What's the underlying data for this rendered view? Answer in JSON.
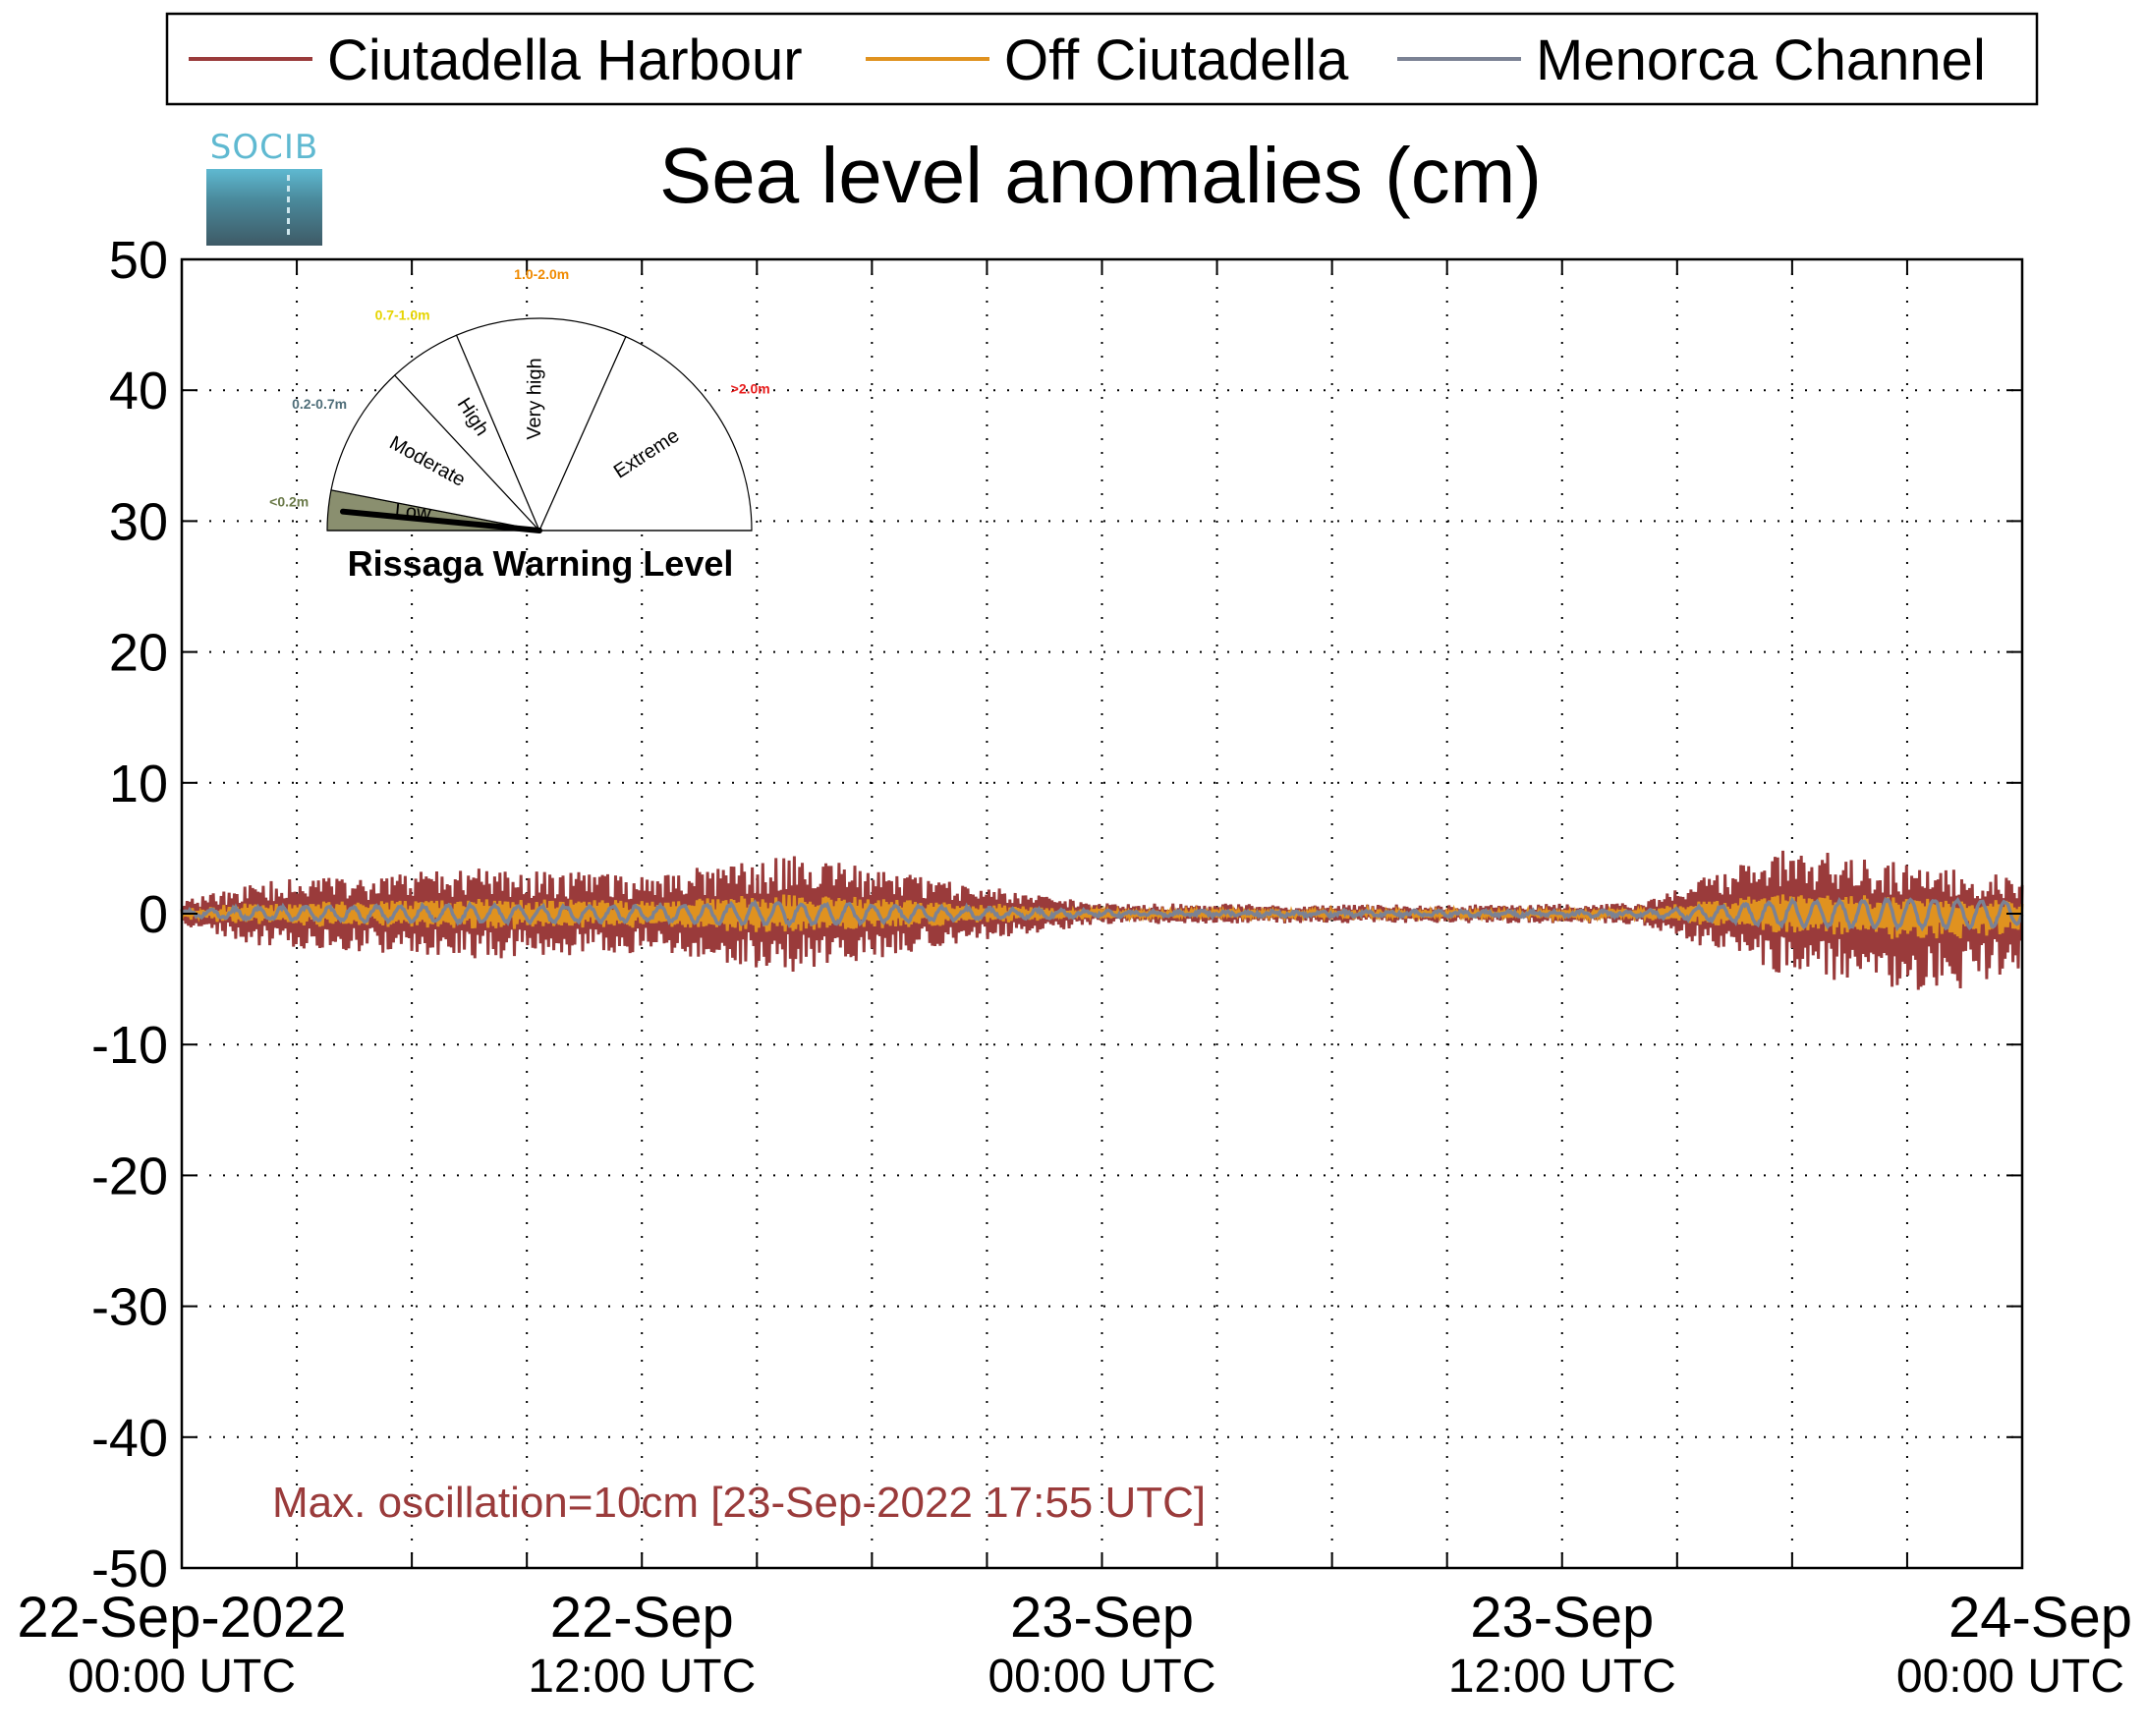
{
  "chart_data": {
    "type": "line",
    "title": "Sea level anomalies (cm)",
    "xlabel": "",
    "ylabel": "",
    "ylim": [
      -50,
      50
    ],
    "yticks": [
      50,
      40,
      30,
      20,
      10,
      0,
      -10,
      -20,
      -30,
      -40,
      -50
    ],
    "yticklabels": [
      "50",
      "40",
      "30",
      "20",
      "10",
      "0",
      "-10",
      "-20",
      "-30",
      "-40",
      "-50"
    ],
    "xlim": [
      "2022-09-22T00:00Z",
      "2022-09-24T00:00Z"
    ],
    "xticks": [
      {
        "t": "2022-09-22T00:00Z",
        "line1": "22-Sep-2022",
        "line2": "00:00 UTC"
      },
      {
        "t": "2022-09-22T12:00Z",
        "line1": "22-Sep",
        "line2": "12:00 UTC"
      },
      {
        "t": "2022-09-23T00:00Z",
        "line1": "23-Sep",
        "line2": "00:00 UTC"
      },
      {
        "t": "2022-09-23T12:00Z",
        "line1": "23-Sep",
        "line2": "12:00 UTC"
      },
      {
        "t": "2022-09-24T00:00Z",
        "line1": "24-Sep",
        "line2": "00:00 UTC"
      }
    ],
    "grid": true,
    "legend_position": "top",
    "series": [
      {
        "name": "Ciutadella Harbour",
        "color": "#9a3b3b",
        "amplitude_envelope": [
          {
            "t": "2022-09-22T00:00Z",
            "max": 1,
            "min": -1
          },
          {
            "t": "2022-09-22T02:00Z",
            "max": 2.5,
            "min": -2.5
          },
          {
            "t": "2022-09-22T08:00Z",
            "max": 3.5,
            "min": -3.5
          },
          {
            "t": "2022-09-22T12:00Z",
            "max": 3,
            "min": -3
          },
          {
            "t": "2022-09-22T16:00Z",
            "max": 4.5,
            "min": -4.5
          },
          {
            "t": "2022-09-22T20:00Z",
            "max": 2.5,
            "min": -2.5
          },
          {
            "t": "2022-09-23T00:00Z",
            "max": 0.8,
            "min": -0.8
          },
          {
            "t": "2022-09-23T08:00Z",
            "max": 0.7,
            "min": -0.7
          },
          {
            "t": "2022-09-23T14:00Z",
            "max": 0.8,
            "min": -0.8
          },
          {
            "t": "2022-09-23T17:55Z",
            "max": 5.3,
            "min": -5
          },
          {
            "t": "2022-09-23T22:00Z",
            "max": 3.5,
            "min": -6
          },
          {
            "t": "2022-09-24T00:00Z",
            "max": 3,
            "min": -4.5
          }
        ]
      },
      {
        "name": "Off Ciutadella",
        "color": "#e0921f",
        "amplitude_cm": 1.2
      },
      {
        "name": "Menorca Channel",
        "color": "#7b8294",
        "amplitude_cm": 0.6
      }
    ],
    "annotation": "Max. oscillation=10cm [23-Sep-2022 17:55 UTC]",
    "annotation_color": "#9a3b3b"
  },
  "logo": {
    "text": "SOCIB"
  },
  "gauge": {
    "title": "Rissaga Warning Level",
    "current_level": "Low",
    "sectors": [
      {
        "label": "Low",
        "range": "<0.2m",
        "range_color": "#6b7a4a",
        "fill": "#8a8f6f",
        "active": true
      },
      {
        "label": "Moderate",
        "range": "0.2-0.7m",
        "range_color": "#4f6e79",
        "fill": "#ffffff",
        "active": false
      },
      {
        "label": "High",
        "range": "0.7-1.0m",
        "range_color": "#e6d400",
        "fill": "#ffffff",
        "active": false
      },
      {
        "label": "Very high",
        "range": "1.0-2.0m",
        "range_color": "#f08a00",
        "fill": "#ffffff",
        "active": false
      },
      {
        "label": "Extreme",
        "range": ">2.0m",
        "range_color": "#e81d1d",
        "fill": "#ffffff",
        "active": false
      }
    ]
  }
}
